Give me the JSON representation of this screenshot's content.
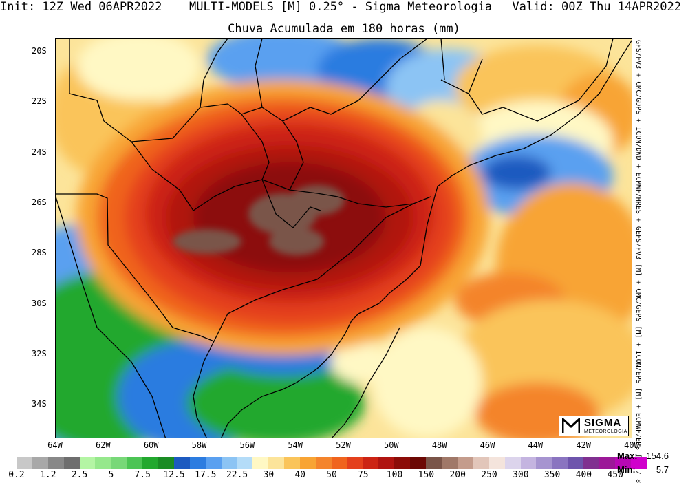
{
  "header": {
    "init": "Init: 12Z Wed 06APR2022",
    "model": "MULTI-MODELS [M] 0.25° - Sigma Meteorologia",
    "valid": "Valid: 00Z Thu 14APR2022",
    "title": "Chuva Acumulada em 180 horas (mm)"
  },
  "lat_labels": [
    "20S",
    "22S",
    "24S",
    "26S",
    "28S",
    "30S",
    "32S",
    "34S"
  ],
  "lon_labels": [
    "64W",
    "62W",
    "60W",
    "58W",
    "56W",
    "54W",
    "52W",
    "50W",
    "48W",
    "46W",
    "44W",
    "42W",
    "40W"
  ],
  "side_text": "GFS/FV3 + CMC/GDPS + ICON/DWD + ECMWF/HRES + GEFS/FV3 [M] + CMC/GEPS [M] + ICON/EPS [M] + ECMWF/EPS [M] / 8",
  "logo": {
    "line1": "SIGMA",
    "line2": "METEOROLOGIA"
  },
  "legend": {
    "labels": [
      "0.2",
      "1.2",
      "2.5",
      "5",
      "7.5",
      "12.5",
      "17.5",
      "22.5",
      "30",
      "40",
      "50",
      "75",
      "100",
      "150",
      "200",
      "250",
      "300",
      "350",
      "400",
      "450"
    ],
    "colors": [
      "#c8c8c8",
      "#a8a8a8",
      "#888888",
      "#6e6e6e",
      "#b4f5a4",
      "#96e88c",
      "#78d878",
      "#4cc454",
      "#22a82e",
      "#1a8c24",
      "#1c5ac0",
      "#2c7ce0",
      "#5aa0f0",
      "#8cc4f4",
      "#b4dcf8",
      "#fff8c4",
      "#fce49a",
      "#fac45a",
      "#f8a434",
      "#f4842c",
      "#f0641e",
      "#e4401c",
      "#cc2414",
      "#b01410",
      "#8c0c08",
      "#6c0804",
      "#7a5448",
      "#a07868",
      "#c49c8c",
      "#e2c6ba",
      "#f4e4dc",
      "#dcd4ec",
      "#c4b4e0",
      "#a694d0",
      "#8a74c0",
      "#6e54ac",
      "#803090",
      "#9c1898",
      "#b808b4",
      "#d000cc"
    ]
  },
  "max_label": "Max:",
  "max_value": "154.6",
  "min_label": "Min:",
  "min_value": "5.7"
}
